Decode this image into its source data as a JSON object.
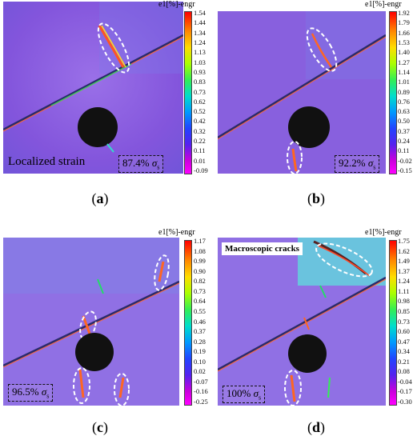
{
  "colorbar_title": "e1[%]-engr",
  "panels": [
    {
      "id": "a",
      "caption": "a",
      "stress": "87.4%",
      "sigma": "σ",
      "subscript": "s",
      "label": "Localized strain",
      "ticks": [
        "1.54",
        "1.44",
        "1.34",
        "1.24",
        "1.13",
        "1.03",
        "0.93",
        "0.83",
        "0.73",
        "0.62",
        "0.52",
        "0.42",
        "0.32",
        "0.22",
        "0.11",
        "0.01",
        "-0.09"
      ]
    },
    {
      "id": "b",
      "caption": "b",
      "stress": "92.2%",
      "sigma": "σ",
      "subscript": "s",
      "ticks": [
        "1.92",
        "1.79",
        "1.66",
        "1.53",
        "1.40",
        "1.27",
        "1.14",
        "1.01",
        "0.89",
        "0.76",
        "0.63",
        "0.50",
        "0.37",
        "0.24",
        "0.11",
        "-0.02",
        "-0.15"
      ]
    },
    {
      "id": "c",
      "caption": "c",
      "stress": "96.5%",
      "sigma": "σ",
      "subscript": "s",
      "ticks": [
        "1.17",
        "1.08",
        "0.99",
        "0.90",
        "0.82",
        "0.73",
        "0.64",
        "0.55",
        "0.46",
        "0.37",
        "0.28",
        "0.19",
        "0.10",
        "0.02",
        "-0.07",
        "-0.16",
        "-0.25"
      ]
    },
    {
      "id": "d",
      "caption": "d",
      "stress": "100%",
      "sigma": "σ",
      "subscript": "s",
      "label": "Macroscopic cracks",
      "ticks": [
        "1.75",
        "1.62",
        "1.49",
        "1.37",
        "1.24",
        "1.11",
        "0.98",
        "0.85",
        "0.73",
        "0.60",
        "0.47",
        "0.34",
        "0.21",
        "0.08",
        "-0.04",
        "-0.17",
        "-0.30"
      ]
    }
  ],
  "colors": {
    "background_field": "#8a5fe0",
    "colorbar_stops": [
      "#ff0000",
      "#ff8800",
      "#ffdd00",
      "#aaff00",
      "#33ee55",
      "#00ddcc",
      "#0099ff",
      "#2244ff",
      "#5522ee",
      "#cc00dd",
      "#ff00ff"
    ]
  }
}
